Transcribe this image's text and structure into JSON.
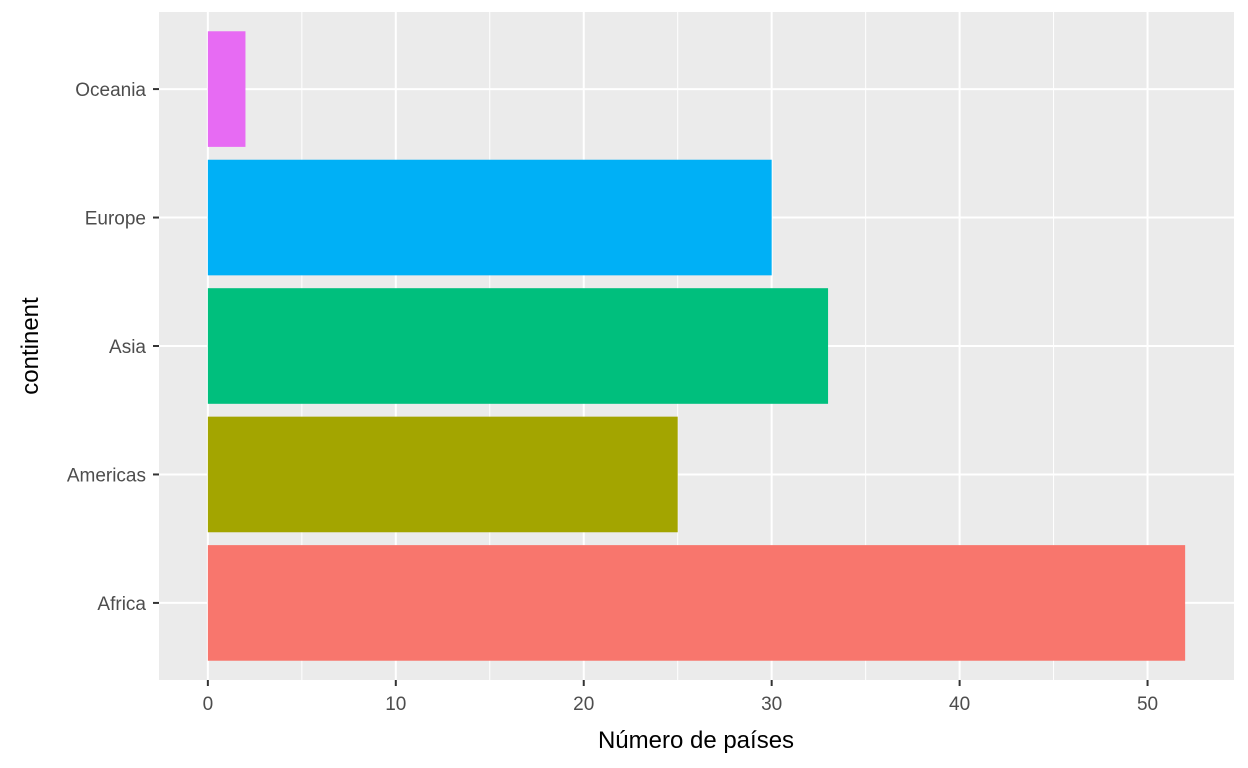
{
  "chart_data": {
    "type": "bar",
    "orientation": "horizontal",
    "title": "",
    "xlabel": "Número de países",
    "ylabel": "continent",
    "categories": [
      "Africa",
      "Americas",
      "Asia",
      "Europe",
      "Oceania"
    ],
    "values": [
      52,
      25,
      33,
      30,
      2
    ],
    "colors": [
      "#F8766D",
      "#A3A500",
      "#00BF7D",
      "#00B0F6",
      "#E76BF3"
    ],
    "xlim": [
      -2.6,
      54.6
    ],
    "x_ticks": [
      0,
      10,
      20,
      30,
      40,
      50
    ],
    "x_tick_labels": [
      "0",
      "10",
      "20",
      "30",
      "40",
      "50"
    ],
    "grid": true,
    "legend": "none",
    "panel_background": "#EBEBEB",
    "grid_color": "#FFFFFF"
  }
}
